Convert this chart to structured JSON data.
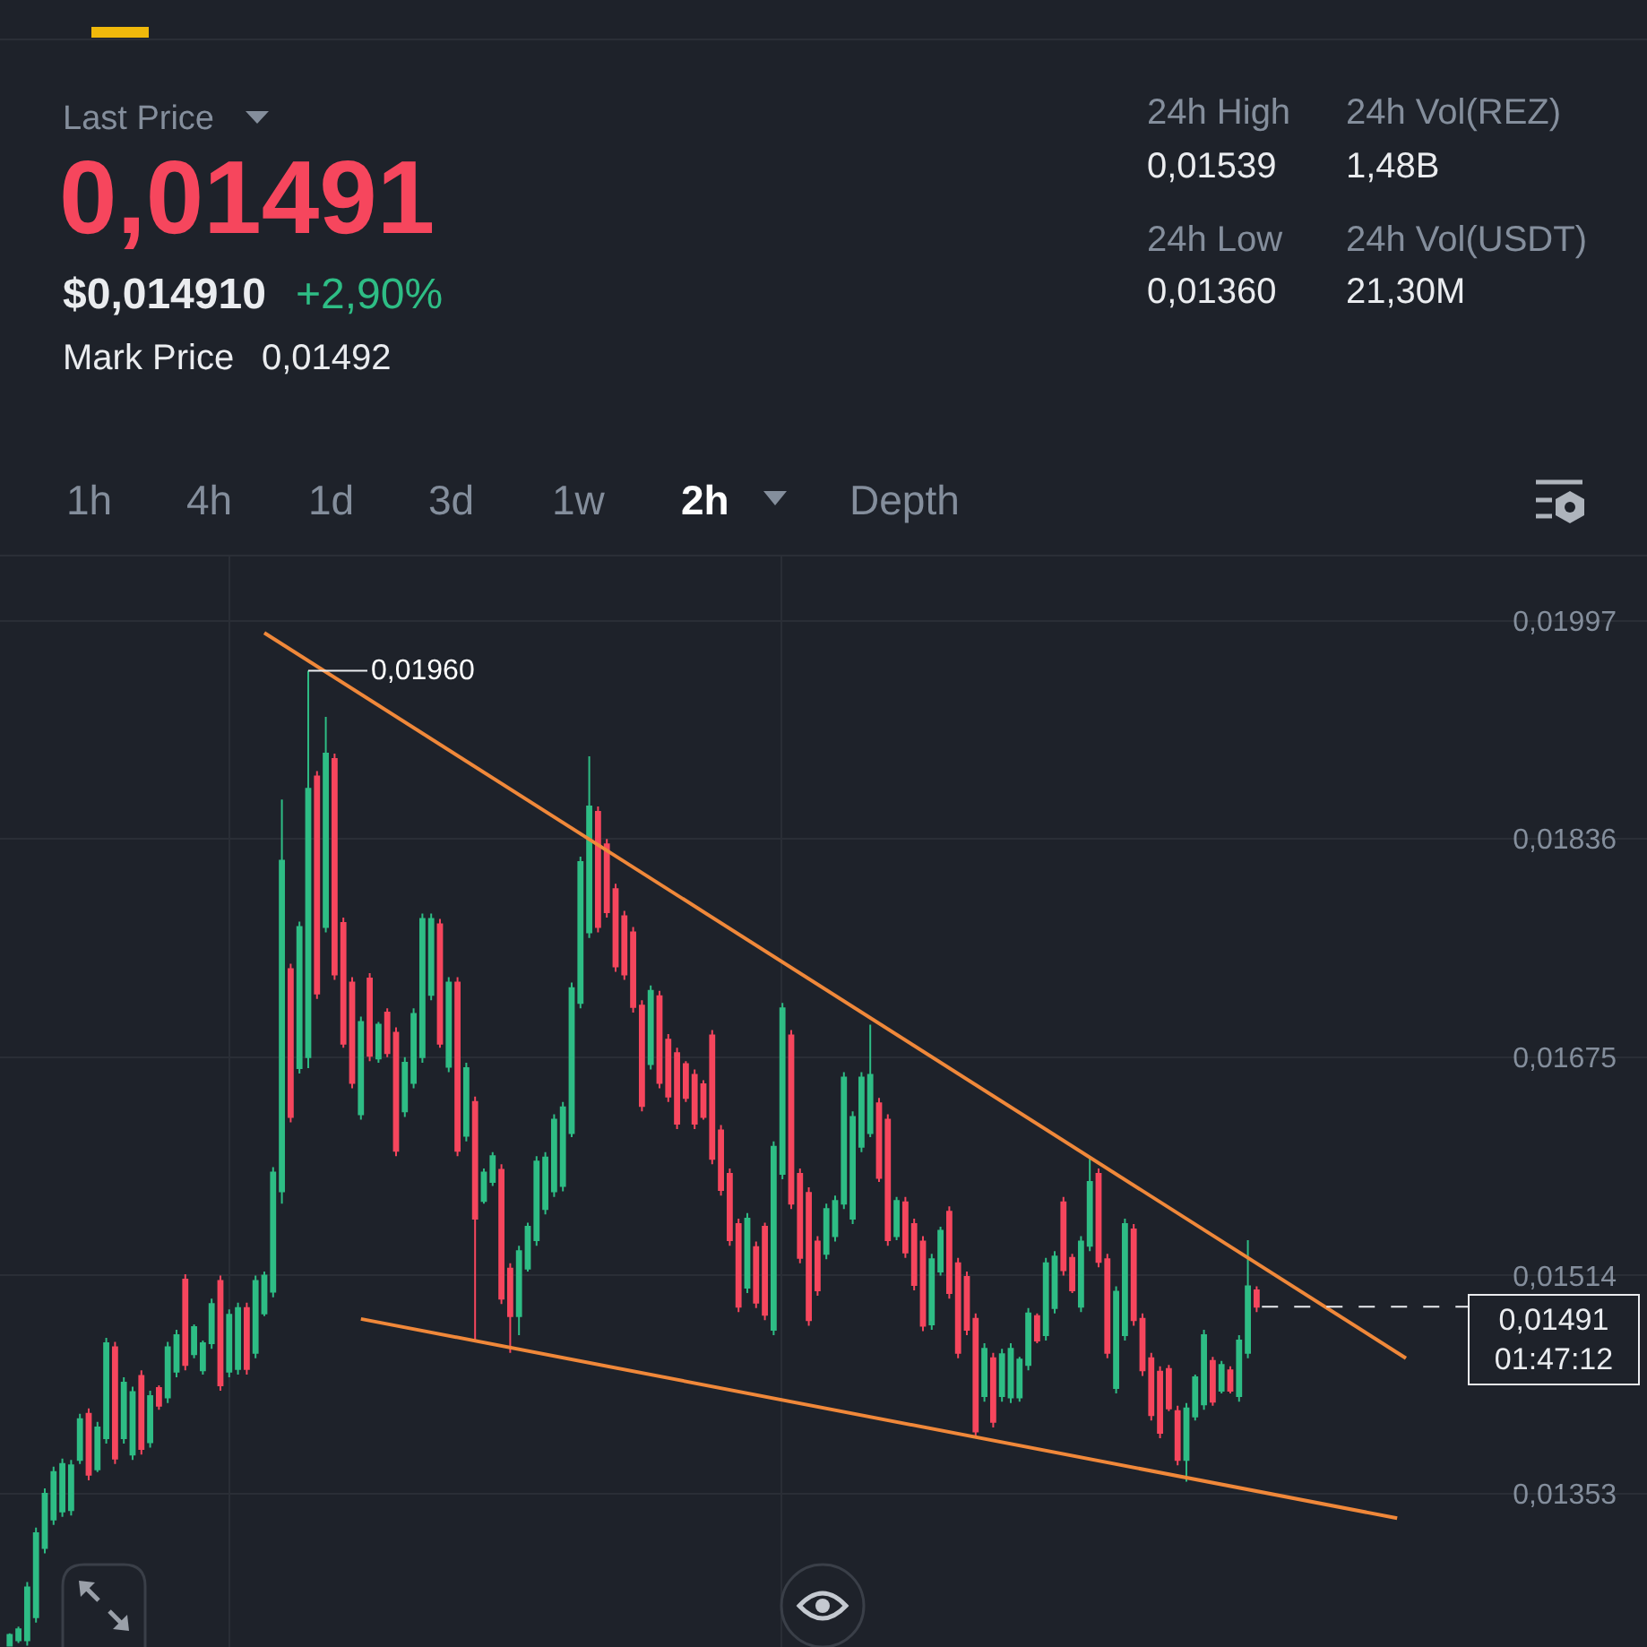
{
  "chart_data": {
    "type": "candlestick",
    "categories": [
      null,
      null,
      null,
      null,
      null,
      null,
      null,
      null,
      null,
      null,
      null,
      null,
      null,
      null,
      null,
      null,
      null,
      null,
      null,
      null,
      null,
      null,
      null,
      null,
      null,
      null,
      null,
      null,
      null,
      null,
      null,
      null,
      null,
      null,
      null,
      null,
      null,
      null,
      null,
      null,
      null,
      null,
      null,
      null,
      null,
      null,
      null,
      null,
      null,
      null,
      null,
      null,
      null,
      null,
      null,
      null,
      null,
      null,
      null,
      null,
      null,
      null,
      null,
      null,
      null,
      null,
      null,
      null,
      null,
      null,
      null,
      null,
      null,
      null,
      null,
      null,
      null,
      null,
      null,
      null,
      null,
      null,
      null,
      null,
      null,
      null,
      null,
      null,
      null,
      null,
      null,
      null,
      null,
      null,
      null,
      null,
      null,
      null,
      null,
      null,
      null,
      null,
      null,
      null,
      null,
      null,
      null,
      null,
      null,
      null,
      null,
      null,
      null,
      null,
      null,
      null,
      null,
      null,
      null,
      null,
      null,
      null,
      null,
      null,
      null,
      null,
      null,
      null,
      null,
      null,
      null,
      null,
      null,
      null,
      null,
      null,
      null,
      null,
      null,
      null,
      null,
      null,
      null,
      null,
      null,
      null,
      null,
      null,
      null,
      null,
      null,
      null,
      null,
      null,
      null,
      null,
      null,
      null,
      null,
      null
    ],
    "ohlc": [
      [
        0.01241,
        0.0125,
        0.01241,
        0.01249
      ],
      [
        0.01245,
        0.01255,
        0.01243,
        0.01253
      ],
      [
        0.01245,
        0.01288,
        0.01241,
        0.01284
      ],
      [
        0.01262,
        0.01328,
        0.01258,
        0.01324
      ],
      [
        0.01313,
        0.01357,
        0.01309,
        0.01353
      ],
      [
        0.01334,
        0.01373,
        0.0133,
        0.01369
      ],
      [
        0.0134,
        0.01379,
        0.01336,
        0.01375
      ],
      [
        0.01341,
        0.01378,
        0.01337,
        0.01374
      ],
      [
        0.01378,
        0.01412,
        0.01375,
        0.01408
      ],
      [
        0.01412,
        0.01416,
        0.01363,
        0.01367
      ],
      [
        0.01371,
        0.01406,
        0.01369,
        0.01402
      ],
      [
        0.01394,
        0.01468,
        0.0139,
        0.01464
      ],
      [
        0.01461,
        0.01465,
        0.01375,
        0.01379
      ],
      [
        0.01394,
        0.01439,
        0.0139,
        0.01435
      ],
      [
        0.01382,
        0.01432,
        0.01378,
        0.01428
      ],
      [
        0.0144,
        0.01444,
        0.01382,
        0.01386
      ],
      [
        0.01391,
        0.01429,
        0.01387,
        0.01425
      ],
      [
        0.01431,
        0.01433,
        0.01415,
        0.01418
      ],
      [
        0.01424,
        0.01465,
        0.0142,
        0.01461
      ],
      [
        0.01443,
        0.01474,
        0.01439,
        0.0147
      ],
      [
        0.01511,
        0.01515,
        0.01444,
        0.01448
      ],
      [
        0.01456,
        0.01478,
        0.01453,
        0.01476
      ],
      [
        0.01444,
        0.01466,
        0.01441,
        0.01464
      ],
      [
        0.01464,
        0.01497,
        0.0146,
        0.01493
      ],
      [
        0.0151,
        0.01514,
        0.01429,
        0.01433
      ],
      [
        0.01443,
        0.01489,
        0.01439,
        0.01485
      ],
      [
        0.01445,
        0.01494,
        0.01441,
        0.0149
      ],
      [
        0.0149,
        0.01494,
        0.01441,
        0.01445
      ],
      [
        0.01457,
        0.01514,
        0.01453,
        0.0151
      ],
      [
        0.01486,
        0.01517,
        0.01484,
        0.01514
      ],
      [
        0.01502,
        0.01594,
        0.01498,
        0.0159
      ],
      [
        0.01576,
        0.01865,
        0.01567,
        0.0182
      ],
      [
        0.0174,
        0.01744,
        0.01627,
        0.01631
      ],
      [
        0.01667,
        0.01775,
        0.01663,
        0.01771
      ],
      [
        0.01675,
        0.0196,
        0.01667,
        0.01873
      ],
      [
        0.01882,
        0.01886,
        0.01718,
        0.01722
      ],
      [
        0.01771,
        0.01926,
        0.01767,
        0.01899
      ],
      [
        0.01895,
        0.01899,
        0.01732,
        0.01736
      ],
      [
        0.01774,
        0.01778,
        0.01682,
        0.01685
      ],
      [
        0.0173,
        0.01734,
        0.01652,
        0.01656
      ],
      [
        0.01633,
        0.01705,
        0.01629,
        0.01701
      ],
      [
        0.01733,
        0.01737,
        0.01672,
        0.01676
      ],
      [
        0.01674,
        0.01701,
        0.01671,
        0.01699
      ],
      [
        0.01708,
        0.01711,
        0.01675,
        0.01678
      ],
      [
        0.01693,
        0.01697,
        0.01602,
        0.01606
      ],
      [
        0.01635,
        0.01675,
        0.01631,
        0.01671
      ],
      [
        0.01656,
        0.01711,
        0.01652,
        0.01707
      ],
      [
        0.01675,
        0.01781,
        0.01671,
        0.01777
      ],
      [
        0.01721,
        0.01781,
        0.01717,
        0.01777
      ],
      [
        0.01773,
        0.01777,
        0.01682,
        0.01685
      ],
      [
        0.01668,
        0.01734,
        0.01664,
        0.0173
      ],
      [
        0.0173,
        0.01734,
        0.01602,
        0.01606
      ],
      [
        0.01617,
        0.01671,
        0.01613,
        0.01667
      ],
      [
        0.01642,
        0.01646,
        0.01466,
        0.01556
      ],
      [
        0.01569,
        0.01593,
        0.01567,
        0.0159
      ],
      [
        0.01583,
        0.01605,
        0.0158,
        0.01602
      ],
      [
        0.01592,
        0.01596,
        0.01493,
        0.01497
      ],
      [
        0.01519,
        0.01523,
        0.01457,
        0.01484
      ],
      [
        0.01484,
        0.01536,
        0.0147,
        0.01532
      ],
      [
        0.01519,
        0.01553,
        0.01517,
        0.0155
      ],
      [
        0.0154,
        0.01602,
        0.01536,
        0.01598
      ],
      [
        0.01563,
        0.01605,
        0.01559,
        0.01601
      ],
      [
        0.01576,
        0.01633,
        0.01572,
        0.01629
      ],
      [
        0.0158,
        0.01642,
        0.01576,
        0.01638
      ],
      [
        0.01619,
        0.0173,
        0.01616,
        0.01726
      ],
      [
        0.01715,
        0.01823,
        0.01711,
        0.01819
      ],
      [
        0.01767,
        0.01897,
        0.01763,
        0.0186
      ],
      [
        0.01856,
        0.0186,
        0.01767,
        0.01771
      ],
      [
        0.01832,
        0.01836,
        0.01778,
        0.01782
      ],
      [
        0.01799,
        0.01803,
        0.01738,
        0.01742
      ],
      [
        0.01779,
        0.01783,
        0.01732,
        0.01736
      ],
      [
        0.01767,
        0.01771,
        0.01708,
        0.01712
      ],
      [
        0.01713,
        0.01717,
        0.01635,
        0.01639
      ],
      [
        0.0167,
        0.01728,
        0.01666,
        0.01724
      ],
      [
        0.0172,
        0.01724,
        0.01652,
        0.01656
      ],
      [
        0.01688,
        0.01692,
        0.01642,
        0.01646
      ],
      [
        0.01678,
        0.01682,
        0.01622,
        0.01626
      ],
      [
        0.0167,
        0.01672,
        0.01642,
        0.01645
      ],
      [
        0.01662,
        0.01666,
        0.01622,
        0.01626
      ],
      [
        0.01655,
        0.01658,
        0.01629,
        0.01631
      ],
      [
        0.01691,
        0.01695,
        0.01596,
        0.016
      ],
      [
        0.01621,
        0.01625,
        0.01573,
        0.01577
      ],
      [
        0.01589,
        0.01593,
        0.01536,
        0.0154
      ],
      [
        0.01552,
        0.01556,
        0.01487,
        0.01491
      ],
      [
        0.01505,
        0.0156,
        0.01501,
        0.01556
      ],
      [
        0.01535,
        0.01539,
        0.0149,
        0.01494
      ],
      [
        0.0155,
        0.01553,
        0.01481,
        0.01485
      ],
      [
        0.01474,
        0.01613,
        0.0147,
        0.01609
      ],
      [
        0.01589,
        0.01715,
        0.01585,
        0.01711
      ],
      [
        0.01691,
        0.01695,
        0.01563,
        0.01567
      ],
      [
        0.01589,
        0.01593,
        0.01523,
        0.01527
      ],
      [
        0.01575,
        0.01579,
        0.01477,
        0.01481
      ],
      [
        0.01539,
        0.01543,
        0.01499,
        0.01503
      ],
      [
        0.0153,
        0.01567,
        0.01526,
        0.01563
      ],
      [
        0.01543,
        0.01573,
        0.01539,
        0.01569
      ],
      [
        0.01567,
        0.01664,
        0.01563,
        0.0166
      ],
      [
        0.01556,
        0.01635,
        0.01552,
        0.01631
      ],
      [
        0.01609,
        0.01664,
        0.01605,
        0.0166
      ],
      [
        0.01619,
        0.01699,
        0.01616,
        0.01662
      ],
      [
        0.01641,
        0.01645,
        0.01583,
        0.01586
      ],
      [
        0.01629,
        0.01633,
        0.01536,
        0.0154
      ],
      [
        0.01543,
        0.01572,
        0.0154,
        0.01569
      ],
      [
        0.01568,
        0.01572,
        0.01527,
        0.01531
      ],
      [
        0.01552,
        0.01556,
        0.01503,
        0.01507
      ],
      [
        0.01539,
        0.01543,
        0.01473,
        0.01477
      ],
      [
        0.01478,
        0.0153,
        0.01474,
        0.01526
      ],
      [
        0.01517,
        0.0155,
        0.01514,
        0.01547
      ],
      [
        0.01561,
        0.01565,
        0.01497,
        0.01501
      ],
      [
        0.01523,
        0.01527,
        0.01453,
        0.01457
      ],
      [
        0.01513,
        0.01517,
        0.0147,
        0.01474
      ],
      [
        0.01482,
        0.01486,
        0.01395,
        0.01399
      ],
      [
        0.01425,
        0.01464,
        0.01421,
        0.0146
      ],
      [
        0.01453,
        0.01457,
        0.01402,
        0.01406
      ],
      [
        0.01425,
        0.0146,
        0.01421,
        0.01456
      ],
      [
        0.01424,
        0.01464,
        0.0142,
        0.0146
      ],
      [
        0.01424,
        0.01454,
        0.01421,
        0.01452
      ],
      [
        0.01448,
        0.0149,
        0.01444,
        0.01486
      ],
      [
        0.01484,
        0.01486,
        0.01464,
        0.01466
      ],
      [
        0.0147,
        0.01527,
        0.01466,
        0.01523
      ],
      [
        0.0149,
        0.01532,
        0.01486,
        0.01528
      ],
      [
        0.01568,
        0.01572,
        0.01514,
        0.01518
      ],
      [
        0.01527,
        0.0153,
        0.01501,
        0.01503
      ],
      [
        0.01491,
        0.01543,
        0.01487,
        0.01539
      ],
      [
        0.01536,
        0.01602,
        0.01532,
        0.01583
      ],
      [
        0.01589,
        0.01593,
        0.0152,
        0.01524
      ],
      [
        0.01526,
        0.0153,
        0.01453,
        0.01457
      ],
      [
        0.01431,
        0.01506,
        0.01427,
        0.01502
      ],
      [
        0.0147,
        0.01556,
        0.01466,
        0.01552
      ],
      [
        0.01548,
        0.01552,
        0.01477,
        0.01481
      ],
      [
        0.01482,
        0.01486,
        0.0144,
        0.01444
      ],
      [
        0.01453,
        0.01457,
        0.01407,
        0.01411
      ],
      [
        0.01443,
        0.01447,
        0.01394,
        0.01398
      ],
      [
        0.01445,
        0.01448,
        0.01414,
        0.01416
      ],
      [
        0.01414,
        0.01418,
        0.01374,
        0.01378
      ],
      [
        0.01378,
        0.0142,
        0.01362,
        0.01416
      ],
      [
        0.0141,
        0.01441,
        0.01407,
        0.01439
      ],
      [
        0.01419,
        0.01474,
        0.01415,
        0.0147
      ],
      [
        0.01451,
        0.01454,
        0.01418,
        0.01421
      ],
      [
        0.01429,
        0.01451,
        0.01427,
        0.01448
      ],
      [
        0.01444,
        0.01447,
        0.01427,
        0.01429
      ],
      [
        0.01425,
        0.0147,
        0.01421,
        0.01466
      ],
      [
        0.01457,
        0.0154,
        0.01453,
        0.01506
      ],
      [
        0.01503,
        0.01506,
        0.01487,
        0.01491
      ],
      null,
      null,
      null,
      null,
      null,
      null,
      null,
      null,
      null,
      null,
      null,
      null,
      null,
      null,
      null,
      null,
      null
    ],
    "colors": [
      "#2ebd85",
      "#2ebd85",
      "#2ebd85",
      "#2ebd85",
      "#2ebd85",
      "#2ebd85",
      "#2ebd85",
      "#2ebd85",
      "#2ebd85",
      "#f6465d",
      "#2ebd85",
      "#2ebd85",
      "#f6465d",
      "#2ebd85",
      "#2ebd85",
      "#f6465d",
      "#2ebd85",
      "#f6465d",
      "#2ebd85",
      "#2ebd85",
      "#f6465d",
      "#2ebd85",
      "#2ebd85",
      "#2ebd85",
      "#f6465d",
      "#2ebd85",
      "#2ebd85",
      "#f6465d",
      "#2ebd85",
      "#2ebd85",
      "#2ebd85",
      "#2ebd85",
      "#f6465d",
      "#2ebd85",
      "#2ebd85",
      "#f6465d",
      "#2ebd85",
      "#f6465d",
      "#f6465d",
      "#f6465d",
      "#2ebd85",
      "#f6465d",
      "#2ebd85",
      "#f6465d",
      "#f6465d",
      "#2ebd85",
      "#2ebd85",
      "#2ebd85",
      "#2ebd85",
      "#f6465d",
      "#2ebd85",
      "#f6465d",
      "#2ebd85",
      "#f6465d",
      "#2ebd85",
      "#2ebd85",
      "#f6465d",
      "#f6465d",
      "#2ebd85",
      "#2ebd85",
      "#2ebd85",
      "#2ebd85",
      "#2ebd85",
      "#2ebd85",
      "#2ebd85",
      "#2ebd85",
      "#2ebd85",
      "#f6465d",
      "#f6465d",
      "#f6465d",
      "#f6465d",
      "#f6465d",
      "#f6465d",
      "#2ebd85",
      "#f6465d",
      "#f6465d",
      "#f6465d",
      "#f6465d",
      "#f6465d",
      "#f6465d",
      "#f6465d",
      "#f6465d",
      "#f6465d",
      "#f6465d",
      "#2ebd85",
      "#f6465d",
      "#f6465d",
      "#2ebd85",
      "#2ebd85",
      "#f6465d",
      "#f6465d",
      "#f6465d",
      "#f6465d",
      "#2ebd85",
      "#2ebd85",
      "#2ebd85",
      "#2ebd85",
      "#2ebd85",
      "#2ebd85",
      "#f6465d",
      "#f6465d",
      "#2ebd85",
      "#f6465d",
      "#f6465d",
      "#f6465d",
      "#2ebd85",
      "#2ebd85",
      "#f6465d",
      "#f6465d",
      "#f6465d",
      "#f6465d",
      "#2ebd85",
      "#f6465d",
      "#2ebd85",
      "#2ebd85",
      "#2ebd85",
      "#2ebd85",
      "#f6465d",
      "#2ebd85",
      "#2ebd85",
      "#f6465d",
      "#f6465d",
      "#2ebd85",
      "#2ebd85",
      "#f6465d",
      "#f6465d",
      "#2ebd85",
      "#2ebd85",
      "#f6465d",
      "#f6465d",
      "#f6465d",
      "#f6465d",
      "#f6465d",
      "#f6465d",
      "#2ebd85",
      "#2ebd85",
      "#2ebd85",
      "#f6465d",
      "#2ebd85",
      "#f6465d",
      "#2ebd85",
      "#2ebd85",
      "#f6465d",
      null,
      null,
      null,
      null,
      null,
      null,
      null,
      null,
      null,
      null,
      null,
      null,
      null,
      null,
      null,
      null,
      null
    ],
    "series": [
      {
        "type": "line",
        "color": "#f0883a",
        "values": [
          null,
          null,
          null,
          null,
          null,
          null,
          null,
          null,
          null,
          null,
          null,
          null,
          null,
          null,
          null,
          null,
          null,
          null,
          null,
          null,
          null,
          null,
          null,
          null,
          null,
          null,
          null,
          null,
          null,
          0.01988,
          null,
          null,
          null,
          null,
          null,
          null,
          null,
          null,
          null,
          null,
          null,
          null,
          null,
          null,
          null,
          null,
          null,
          null,
          null,
          null,
          null,
          null,
          null,
          null,
          null,
          null,
          null,
          null,
          null,
          null,
          null,
          null,
          null,
          null,
          null,
          null,
          null,
          null,
          null,
          null,
          null,
          null,
          null,
          null,
          null,
          null,
          null,
          null,
          null,
          null,
          null,
          null,
          null,
          null,
          null,
          null,
          null,
          null,
          null,
          null,
          null,
          null,
          null,
          null,
          null,
          null,
          null,
          null,
          null,
          null,
          null,
          null,
          null,
          null,
          null,
          null,
          null,
          null,
          null,
          null,
          null,
          null,
          null,
          null,
          null,
          null,
          null,
          null,
          null,
          null,
          null,
          null,
          null,
          null,
          null,
          null,
          null,
          null,
          null,
          null,
          null,
          null,
          null,
          null,
          null,
          null,
          null,
          null,
          null,
          null,
          null,
          null,
          null,
          null,
          null,
          null,
          null,
          null,
          null,
          null,
          null,
          null,
          null,
          null,
          null,
          null,
          null,
          null,
          null,
          0.01453
        ]
      },
      {
        "type": "line",
        "color": "#f0883a",
        "values": [
          null,
          null,
          null,
          null,
          null,
          null,
          null,
          null,
          null,
          null,
          null,
          null,
          null,
          null,
          null,
          null,
          null,
          null,
          null,
          null,
          null,
          null,
          null,
          null,
          null,
          null,
          null,
          null,
          null,
          null,
          null,
          null,
          null,
          null,
          null,
          null,
          null,
          null,
          null,
          null,
          0.01482,
          null,
          null,
          null,
          null,
          null,
          null,
          null,
          null,
          null,
          null,
          null,
          null,
          null,
          null,
          null,
          null,
          null,
          null,
          null,
          null,
          null,
          null,
          null,
          null,
          null,
          null,
          null,
          null,
          null,
          null,
          null,
          null,
          null,
          null,
          null,
          null,
          null,
          null,
          null,
          null,
          null,
          null,
          null,
          null,
          null,
          null,
          null,
          null,
          null,
          null,
          null,
          null,
          null,
          null,
          null,
          null,
          null,
          null,
          null,
          null,
          null,
          null,
          null,
          null,
          null,
          null,
          null,
          null,
          null,
          null,
          null,
          null,
          null,
          null,
          null,
          null,
          null,
          null,
          null,
          null,
          null,
          null,
          null,
          null,
          null,
          null,
          null,
          null,
          null,
          null,
          null,
          null,
          null,
          null,
          null,
          null,
          null,
          null,
          null,
          null,
          null,
          null,
          null,
          null,
          null,
          null,
          null,
          null,
          null,
          null,
          null,
          null,
          null,
          null,
          null,
          null,
          null,
          0.01335,
          null
        ]
      }
    ],
    "ylim": [
      0.0124,
      0.02045
    ],
    "yticks": [
      {
        "value": 0.01353,
        "label": "0,01353"
      },
      {
        "value": 0.01514,
        "label": "0,01514"
      },
      {
        "value": 0.01675,
        "label": "0,01675"
      },
      {
        "value": 0.01836,
        "label": "0,01836"
      },
      {
        "value": 0.01997,
        "label": "0,01997"
      }
    ],
    "grid": true,
    "tick_labels": "y",
    "ref_lines": [
      {
        "axis": "y",
        "value": 0.01491,
        "label": "0,01491\n01:47:12",
        "line_style": "dashed",
        "color": "#eaecef"
      }
    ],
    "annotations": [
      "Last Price",
      "0,01491",
      "$0,014910",
      "+2,90%",
      "Mark Price",
      "0,01492",
      "24h High",
      "0,01539",
      "24h Vol(REZ)",
      "1,48B",
      "24h Low",
      "0,01360",
      "24h Vol(USDT)",
      "21,30M",
      "1h",
      "4h",
      "1d",
      "3d",
      "1w",
      "2h",
      "Depth",
      "0,01960"
    ]
  }
}
